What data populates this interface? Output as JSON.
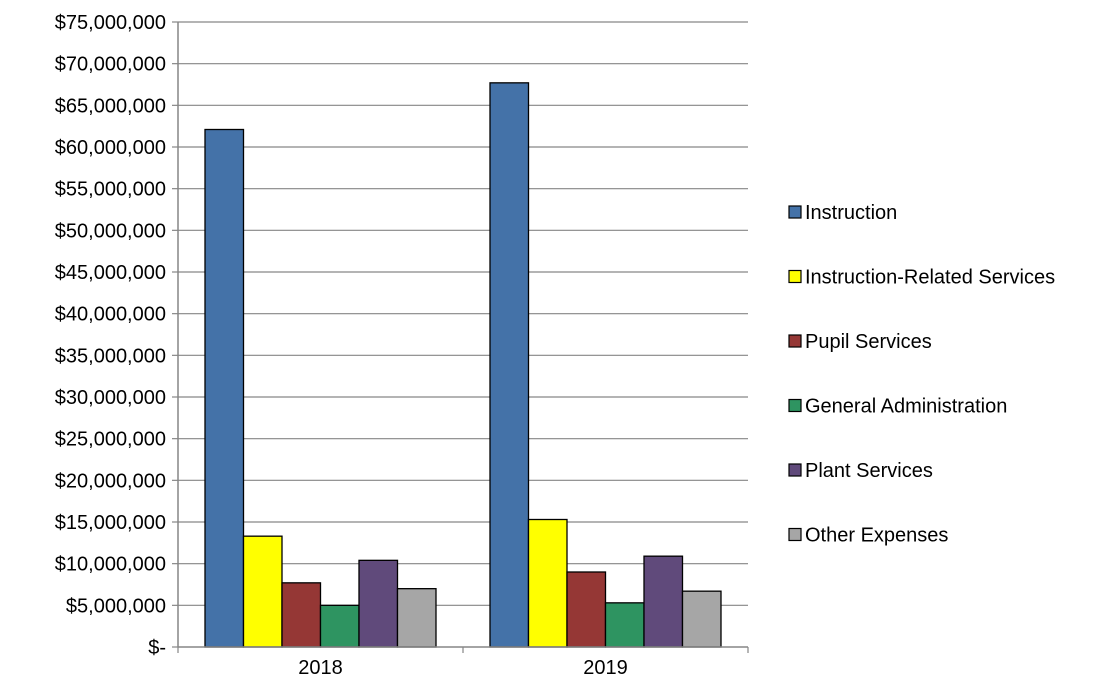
{
  "chart_data": {
    "type": "bar",
    "categories": [
      "2018",
      "2019"
    ],
    "series": [
      {
        "name": "Instruction",
        "color": "#4472a8",
        "values": [
          62100000,
          67700000
        ]
      },
      {
        "name": "Instruction-Related Services",
        "color": "#ffff00",
        "values": [
          13300000,
          15300000
        ]
      },
      {
        "name": "Pupil Services",
        "color": "#953735",
        "values": [
          7700000,
          9000000
        ]
      },
      {
        "name": "General Administration",
        "color": "#2e9461",
        "values": [
          5000000,
          5300000
        ]
      },
      {
        "name": "Plant Services",
        "color": "#604a7b",
        "values": [
          10400000,
          10900000
        ]
      },
      {
        "name": "Other Expenses",
        "color": "#a6a6a6",
        "values": [
          7000000,
          6700000
        ]
      }
    ],
    "y_ticks": [
      "$-",
      "$5,000,000",
      "$10,000,000",
      "$15,000,000",
      "$20,000,000",
      "$25,000,000",
      "$30,000,000",
      "$35,000,000",
      "$40,000,000",
      "$45,000,000",
      "$50,000,000",
      "$55,000,000",
      "$60,000,000",
      "$65,000,000",
      "$70,000,000",
      "$75,000,000"
    ],
    "ylim": [
      0,
      75000000
    ],
    "grid": true,
    "legend_position": "right",
    "title": "",
    "xlabel": "",
    "ylabel": ""
  }
}
